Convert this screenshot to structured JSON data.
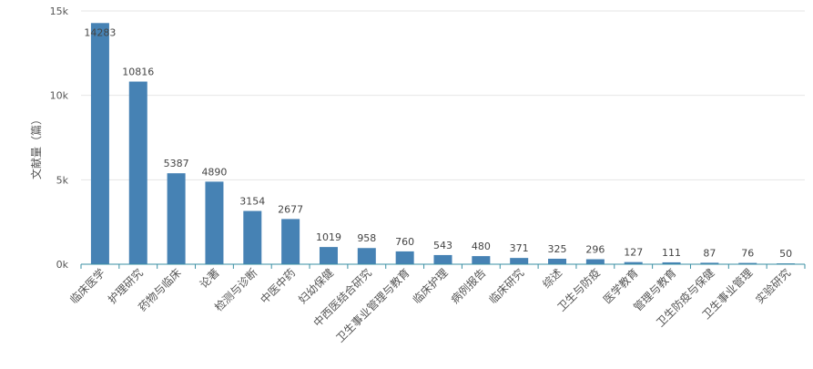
{
  "chart_data": {
    "type": "bar",
    "ylabel": "文献量（篇）",
    "ylim": [
      0,
      15000
    ],
    "yticks": [
      {
        "value": 0,
        "label": "0k"
      },
      {
        "value": 5000,
        "label": "5k"
      },
      {
        "value": 10000,
        "label": "10k"
      },
      {
        "value": 15000,
        "label": "15k"
      }
    ],
    "grid": true,
    "legend": "none",
    "bar_color": "#4682b4",
    "categories": [
      "临床医学",
      "护理研究",
      "药物与临床",
      "论著",
      "检测与诊断",
      "中医中药",
      "妇幼保健",
      "中西医结合研究",
      "卫生事业管理与教育",
      "临床护理",
      "病例报告",
      "临床研究",
      "综述",
      "卫生与防疫",
      "医学教育",
      "管理与教育",
      "卫生防疫与保健",
      "卫生事业管理",
      "实验研究"
    ],
    "values": [
      14283,
      10816,
      5387,
      4890,
      3154,
      2677,
      1019,
      958,
      760,
      543,
      480,
      371,
      325,
      296,
      127,
      111,
      87,
      76,
      50
    ]
  }
}
